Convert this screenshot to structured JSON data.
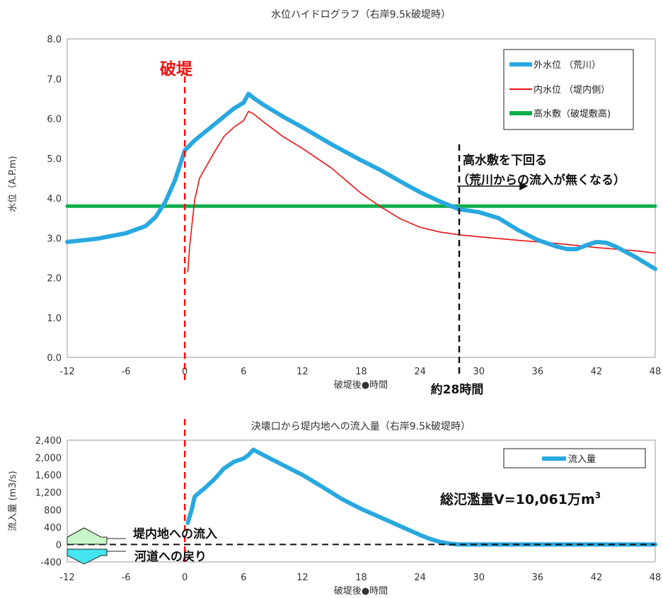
{
  "chart_data": [
    {
      "type": "line",
      "title": "水位ハイドログラフ（右岸9.5k破堤時）",
      "xlabel": "破堤後●時間",
      "ylabel": "水位（A.P.m)",
      "xlim": [
        -12,
        48
      ],
      "ylim": [
        0,
        8
      ],
      "xticks": [
        "-12",
        "-6",
        "0",
        "6",
        "12",
        "18",
        "24",
        "30",
        "36",
        "42",
        "48"
      ],
      "yticks": [
        "0.0",
        "1.0",
        "2.0",
        "3.0",
        "4.0",
        "5.0",
        "6.0",
        "7.0",
        "8.0"
      ],
      "grid": false,
      "legend_position": "top-right",
      "series": [
        {
          "name": "外水位 （荒川）",
          "color": "#29a8e0",
          "x": [
            -12,
            -9,
            -6,
            -4,
            -3,
            -2,
            -1,
            0,
            1,
            2,
            3,
            4,
            5,
            6,
            6.5,
            7,
            8,
            10,
            12,
            15,
            18,
            20,
            22,
            24,
            26,
            28,
            30,
            32,
            34,
            36,
            38,
            39,
            40,
            41,
            42,
            43,
            44,
            46,
            48
          ],
          "y": [
            2.9,
            2.98,
            3.12,
            3.3,
            3.52,
            3.9,
            4.45,
            5.2,
            5.45,
            5.65,
            5.85,
            6.05,
            6.25,
            6.4,
            6.62,
            6.52,
            6.35,
            6.05,
            5.78,
            5.35,
            4.95,
            4.7,
            4.42,
            4.15,
            3.92,
            3.72,
            3.65,
            3.5,
            3.2,
            2.95,
            2.78,
            2.72,
            2.72,
            2.82,
            2.9,
            2.88,
            2.78,
            2.52,
            2.22
          ]
        },
        {
          "name": "内水位 （堤内側）",
          "color": "#ee1111",
          "x": [
            0.3,
            0.5,
            0.8,
            1,
            1.5,
            2,
            3,
            4,
            5,
            6,
            6.5,
            7,
            8,
            10,
            12,
            15,
            18,
            20,
            22,
            24,
            26,
            28,
            30,
            34,
            38,
            42,
            46,
            48
          ],
          "y": [
            2.15,
            2.8,
            3.5,
            3.95,
            4.5,
            4.72,
            5.15,
            5.55,
            5.78,
            5.95,
            6.18,
            6.12,
            5.92,
            5.55,
            5.25,
            4.75,
            4.12,
            3.78,
            3.48,
            3.27,
            3.15,
            3.08,
            3.03,
            2.94,
            2.86,
            2.76,
            2.68,
            2.62
          ]
        },
        {
          "name": "高水敷（破堤敷高)",
          "color": "#0fae4a",
          "x": [
            -12,
            48
          ],
          "y": [
            3.8,
            3.8
          ]
        }
      ],
      "annotations": {
        "breach_label": "破堤",
        "breach_x": 0,
        "below_label_1": "高水敷を下回る",
        "below_label_2": "（荒川からの流入が無くなる）",
        "time_x": 28,
        "time_label": "約28時間"
      }
    },
    {
      "type": "line",
      "title": "決壊口から堤内地への流入量（右岸9.5k破堤時）",
      "xlabel": "破堤後●時間",
      "ylabel": "流入量 (m3/s)",
      "xlim": [
        -12,
        48
      ],
      "ylim": [
        -400,
        2400
      ],
      "xticks": [
        "-12",
        "-6",
        "0",
        "6",
        "12",
        "18",
        "24",
        "30",
        "36",
        "42",
        "48"
      ],
      "yticks": [
        "-400",
        "0",
        "400",
        "800",
        "1,200",
        "1,600",
        "2,000",
        "2,400"
      ],
      "grid": false,
      "legend_position": "top-right",
      "series": [
        {
          "name": "流入量",
          "color": "#29a8e0",
          "x": [
            0.3,
            0.7,
            1,
            1.5,
            2,
            3,
            4,
            5,
            6,
            6.5,
            7,
            8,
            10,
            12,
            14,
            16,
            18,
            20,
            22,
            24,
            25,
            26,
            27,
            28,
            30,
            36,
            42,
            48
          ],
          "y": [
            500,
            800,
            1100,
            1200,
            1290,
            1500,
            1750,
            1900,
            1980,
            2060,
            2180,
            2060,
            1830,
            1600,
            1330,
            1050,
            820,
            620,
            420,
            220,
            130,
            60,
            20,
            0,
            0,
            0,
            0,
            0
          ]
        }
      ],
      "annotations": {
        "total_prefix": "総氾濫量V=10,061万m",
        "total_sup": "3",
        "inflow_label": "堤内地への流入",
        "return_label": "河道への戻り"
      }
    }
  ]
}
